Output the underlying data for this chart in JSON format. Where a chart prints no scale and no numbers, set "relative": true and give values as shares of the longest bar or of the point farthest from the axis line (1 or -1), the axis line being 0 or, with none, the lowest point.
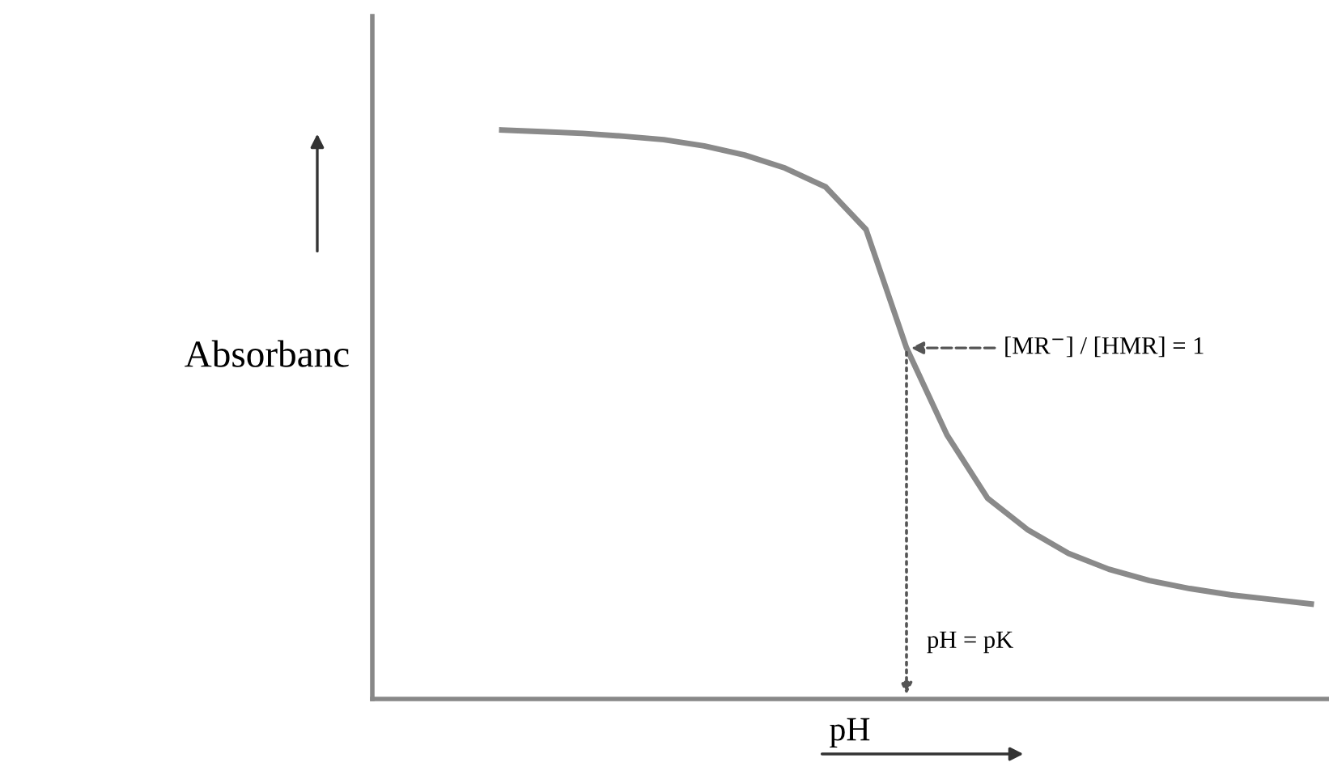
{
  "chart_data": {
    "type": "line",
    "relative": true,
    "ylabel": "Absorbanc",
    "xlabel": "pH",
    "color": "#8a8a8a",
    "categories": [
      null,
      null,
      null,
      null,
      null,
      null,
      null,
      null,
      null,
      null,
      null,
      null,
      null,
      null,
      null,
      null,
      null,
      null,
      null,
      null,
      null
    ],
    "values": [
      1.0,
      0.997,
      0.994,
      0.989,
      0.983,
      0.972,
      0.956,
      0.933,
      0.9,
      0.825,
      0.617,
      0.464,
      0.353,
      0.297,
      0.256,
      0.228,
      0.208,
      0.194,
      0.183,
      0.175,
      0.167
    ],
    "annotations": [
      "[MR$^{−}$] / [HMR] = 1",
      "pH = pK"
    ],
    "marker": "none",
    "line_style": "solid",
    "tick_labels": false
  }
}
